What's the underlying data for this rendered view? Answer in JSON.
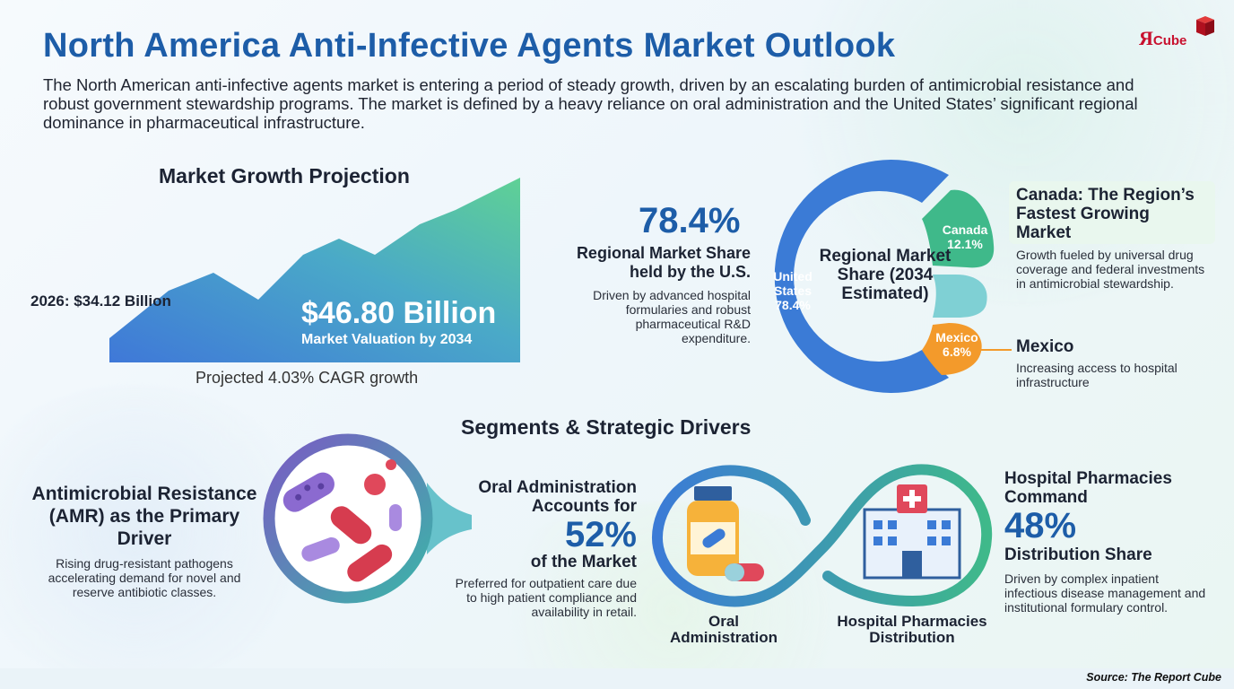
{
  "header": {
    "title": "North America Anti-Infective Agents Market Outlook",
    "intro": "The North American anti-infective agents market is entering a period of steady growth, driven by an escalating burden of antimicrobial resistance and robust government stewardship programs. The market is defined by a heavy reliance on oral administration and the United States’ significant regional dominance in pharmaceutical infrastructure.",
    "logo_text": "Я",
    "logo_sub": "Cube"
  },
  "chart_data": [
    {
      "type": "area",
      "title": "Market Growth Projection",
      "x": [
        "2026",
        "2034"
      ],
      "values": [
        34.12,
        46.8
      ],
      "start_label": "2026: $34.12 Billion",
      "end_value_label": "$46.80 Billion",
      "end_label": "Market Valuation by 2034",
      "caption": "Projected 4.03% CAGR growth"
    },
    {
      "type": "pie",
      "title": "Regional Market Share (2034 Estimated)",
      "slices": [
        {
          "name": "United States",
          "value": 78.4,
          "label": "78.4%"
        },
        {
          "name": "Canada",
          "value": 12.1,
          "label": "12.1%"
        },
        {
          "name": "Mexico",
          "value": 6.8,
          "label": "6.8%"
        }
      ],
      "colors": {
        "united_states": "#3a7bd5",
        "canada": "#3fb98a",
        "mexico": "#f39a2b",
        "other": "#7fd1d6"
      }
    }
  ],
  "regional": {
    "us_value": "78.4%",
    "us_title": "Regional Market Share held by the U.S.",
    "us_desc": "Driven by advanced hospital formularies and robust pharmaceutical R&D expenditure.",
    "center_label": "Regional Market Share (2034 Estimated)",
    "us_seg_name": "United States",
    "us_seg_value": "78.4%",
    "canada_seg_name": "Canada",
    "canada_seg_value": "12.1%",
    "mexico_seg_name": "Mexico",
    "mexico_seg_value": "6.8%",
    "canada_title": "Canada: The Region’s Fastest Growing Market",
    "canada_desc": "Growth fueled by universal drug coverage and federal investments in antimicrobial stewardship.",
    "mexico_title": "Mexico",
    "mexico_desc": "Increasing access to hospital infrastructure"
  },
  "segments": {
    "heading": "Segments & Strategic Drivers",
    "amr_title": "Antimicrobial Resistance (AMR) as the Primary Driver",
    "amr_desc": "Rising drug-resistant pathogens accelerating demand for novel and reserve antibiotic classes.",
    "oral_title": "Oral Administration Accounts for",
    "oral_value": "52%",
    "oral_value_num": 52,
    "oral_suffix": "of the Market",
    "oral_desc": "Preferred for outpatient care due to high patient compliance and availability in retail.",
    "oral_caption": "Oral Administration",
    "hosp_caption": "Hospital Pharmacies Distribution",
    "hosp_title": "Hospital Pharmacies Command",
    "hosp_value": "48%",
    "hosp_value_num": 48,
    "hosp_suffix": "Distribution Share",
    "hosp_desc": "Driven by complex inpatient infectious disease management and institutional formulary control."
  },
  "footer": {
    "source": "Source: The Report Cube"
  },
  "icons": [
    "bacteria-icon",
    "medicine-bottle-icon",
    "capsule-icon",
    "hospital-building-icon",
    "logo-cube-icon"
  ]
}
